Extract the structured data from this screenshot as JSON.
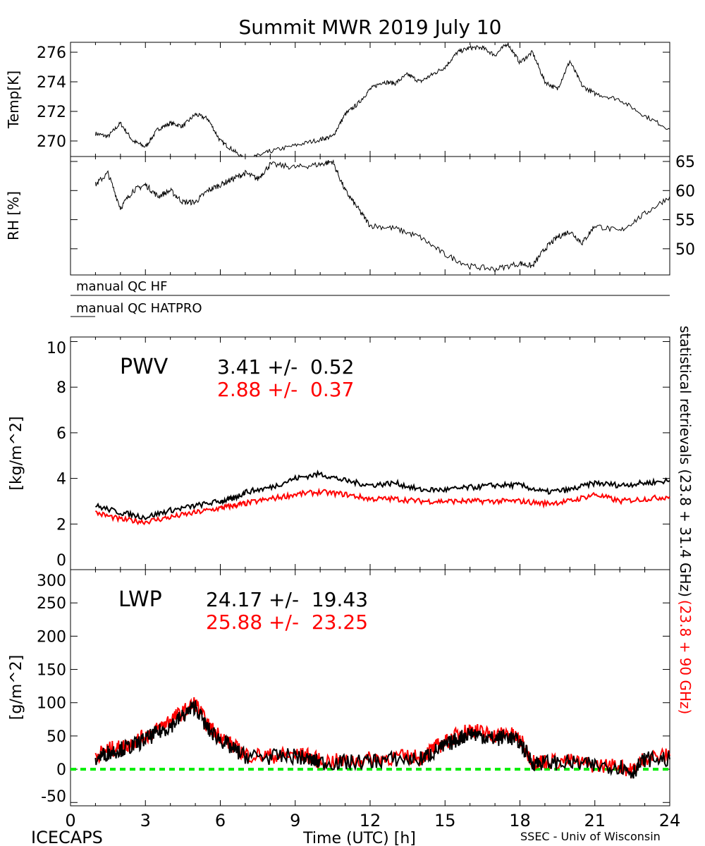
{
  "chart_data": [
    {
      "type": "line",
      "id": "temp",
      "title": "Summit MWR 2019 July 10",
      "ylabel": "Temp[K]",
      "ylim": [
        268.95,
        276.67
      ],
      "yticks": [
        270,
        272,
        274,
        276
      ],
      "xlim": [
        0,
        24
      ],
      "series": [
        {
          "name": "Temp",
          "color": "#000000",
          "x": [
            1,
            1.5,
            2,
            2.5,
            3,
            3.5,
            4,
            4.5,
            5,
            5.5,
            6,
            6.5,
            7,
            7.5,
            8,
            9,
            10,
            10.5,
            11,
            11.5,
            12,
            12.5,
            13,
            13.5,
            14,
            14.5,
            15,
            15.5,
            16,
            16.5,
            17,
            17.5,
            18,
            18.5,
            19,
            19.5,
            20,
            20.5,
            21,
            22,
            23,
            24
          ],
          "y": [
            270.5,
            270.3,
            271.2,
            270.0,
            269.6,
            270.8,
            271.2,
            271.0,
            271.8,
            271.5,
            270.0,
            269.4,
            268.7,
            269.0,
            269.3,
            269.7,
            270.1,
            270.3,
            271.8,
            272.5,
            273.5,
            274.0,
            273.9,
            274.5,
            274.0,
            274.5,
            275.0,
            276.0,
            276.3,
            276.3,
            275.8,
            276.6,
            275.3,
            276.0,
            274.0,
            273.5,
            275.4,
            273.7,
            273.2,
            272.8,
            271.7,
            270.8
          ]
        }
      ]
    },
    {
      "type": "line",
      "id": "rh",
      "ylabel": "RH [%]",
      "ylim": [
        45.5,
        65.85
      ],
      "yticks": [
        50,
        55,
        60,
        65
      ],
      "xlim": [
        0,
        24
      ],
      "series": [
        {
          "name": "RH",
          "color": "#000000",
          "x": [
            1,
            1.5,
            2,
            2.5,
            3,
            3.5,
            4,
            4.5,
            5,
            5.5,
            6,
            6.5,
            7,
            7.5,
            8,
            9,
            10,
            10.5,
            11,
            11.5,
            12,
            13,
            14,
            15,
            16,
            17,
            18,
            18.5,
            19,
            19.5,
            20,
            20.5,
            21,
            22,
            23,
            24
          ],
          "y": [
            61,
            63,
            57,
            60,
            61,
            59,
            60,
            58,
            58,
            60,
            61,
            62,
            63,
            62,
            64.5,
            64,
            64.5,
            65,
            60,
            57,
            54,
            53.5,
            52,
            49,
            47,
            46.5,
            47.5,
            47,
            50,
            52,
            53,
            51,
            54,
            53,
            56,
            59
          ]
        }
      ]
    },
    {
      "type": "line",
      "id": "pwv",
      "ylabel": "[kg/m^2]",
      "label": "PWV",
      "stats": [
        "3.41 +/-  0.52",
        "2.88 +/-  0.37"
      ],
      "ylim": [
        0,
        10.2
      ],
      "yticks": [
        0,
        2,
        4,
        6,
        8,
        10
      ],
      "xlim": [
        0,
        24
      ],
      "series": [
        {
          "name": "23.8 + 31.4 GHz",
          "color": "#000000",
          "x": [
            1,
            2,
            3,
            4,
            5,
            6,
            6.5,
            7,
            8,
            9,
            10,
            11,
            12,
            13,
            14,
            15,
            16,
            17,
            18,
            19,
            20,
            21,
            22,
            23,
            24
          ],
          "y": [
            2.8,
            2.5,
            2.3,
            2.6,
            2.8,
            3.0,
            3.1,
            3.4,
            3.6,
            4.0,
            4.2,
            3.9,
            3.7,
            3.8,
            3.5,
            3.5,
            3.6,
            3.7,
            3.7,
            3.4,
            3.5,
            3.8,
            3.7,
            3.8,
            3.9
          ]
        },
        {
          "name": "23.8 + 90 GHz",
          "color": "#ff0000",
          "x": [
            1,
            2,
            3,
            4,
            5,
            6,
            6.5,
            7,
            8,
            9,
            10,
            11,
            12,
            13,
            14,
            15,
            16,
            17,
            18,
            19,
            20,
            21,
            22,
            23,
            24
          ],
          "y": [
            2.5,
            2.2,
            2.1,
            2.3,
            2.5,
            2.7,
            2.8,
            2.9,
            3.1,
            3.3,
            3.4,
            3.3,
            3.1,
            3.1,
            3.0,
            3.0,
            3.0,
            3.0,
            3.0,
            2.9,
            3.0,
            3.3,
            3.0,
            3.1,
            3.2
          ]
        }
      ]
    },
    {
      "type": "line",
      "id": "lwp",
      "ylabel": "[g/m^2]",
      "label": "LWP",
      "stats": [
        "24.17 +/-  19.43",
        "25.88 +/-  23.25"
      ],
      "ylim": [
        -55,
        300
      ],
      "yticks": [
        -50,
        0,
        50,
        100,
        150,
        200,
        250,
        300
      ],
      "xlim": [
        0,
        24
      ],
      "xticks": [
        0,
        3,
        6,
        9,
        12,
        15,
        18,
        21,
        24
      ],
      "xlabel": "Time (UTC) [h]",
      "zero_line_color": "#00ee00",
      "series": [
        {
          "name": "23.8 + 31.4 GHz",
          "color": "#000000",
          "x": [
            1,
            1.5,
            2,
            2.5,
            3,
            3.5,
            4,
            4.5,
            5,
            5.5,
            6,
            6.5,
            7,
            8,
            9,
            9.5,
            10,
            11,
            12,
            13,
            14,
            14.5,
            15,
            15.5,
            16,
            16.5,
            17,
            17.5,
            18,
            18.5,
            19,
            20,
            21,
            22,
            22.5,
            23,
            24
          ],
          "y": [
            15,
            25,
            30,
            35,
            45,
            55,
            65,
            80,
            95,
            60,
            45,
            30,
            20,
            18,
            20,
            15,
            10,
            10,
            12,
            15,
            15,
            25,
            35,
            45,
            55,
            50,
            45,
            50,
            40,
            10,
            10,
            10,
            5,
            5,
            -5,
            15,
            15
          ]
        },
        {
          "name": "23.8 + 90 GHz",
          "color": "#ff0000",
          "x": [
            1,
            1.5,
            2,
            2.5,
            3,
            3.5,
            4,
            4.5,
            5,
            5.5,
            6,
            6.5,
            7,
            8,
            9,
            9.5,
            10,
            11,
            12,
            13,
            14,
            14.5,
            15,
            15.5,
            16,
            16.5,
            17,
            17.5,
            18,
            18.5,
            19,
            20,
            21,
            22,
            22.5,
            23,
            24
          ],
          "y": [
            20,
            30,
            32,
            40,
            50,
            60,
            75,
            85,
            100,
            65,
            50,
            35,
            22,
            20,
            22,
            20,
            12,
            12,
            15,
            18,
            18,
            30,
            40,
            52,
            60,
            55,
            50,
            55,
            45,
            12,
            12,
            12,
            6,
            5,
            -3,
            18,
            20
          ]
        }
      ]
    }
  ],
  "qc": {
    "hf_label": "manual QC HF",
    "hatpro_label": "manual QC HATPRO"
  },
  "footer": {
    "left": "ICECAPS",
    "right": "SSEC - Univ of Wisconsin"
  },
  "right_label": {
    "black": "statistical retrievals (23.8 + 31.4 GHz)",
    "red": "(23.8 + 90 GHz)"
  }
}
